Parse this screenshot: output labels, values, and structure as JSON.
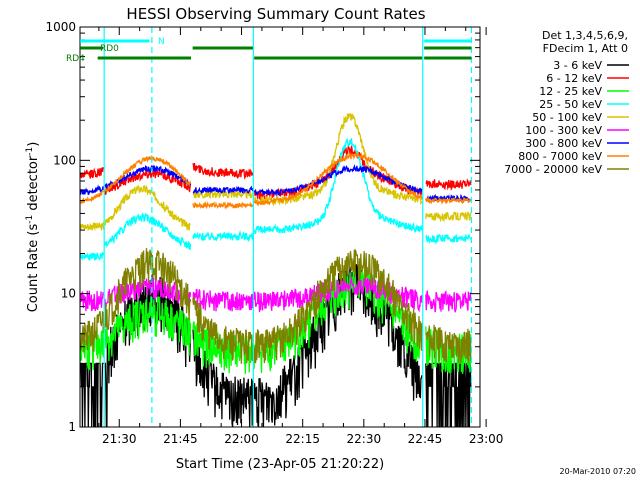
{
  "chart_data": {
    "type": "line",
    "title": "HESSI Observing Summary Count Rates",
    "xlabel": "Start Time (23-Apr-05 21:20:22)",
    "ylabel_main": "Count Rate (s",
    "ylabel_sup1": "-1",
    "ylabel_mid": " detector",
    "ylabel_sup2": "-1",
    "ylabel_end": ")",
    "yscale": "log",
    "ylim": [
      1,
      1000
    ],
    "xlim_min": [
      20.37,
      118.5
    ],
    "x_ticks": [
      {
        "label": "21:30",
        "min": 30
      },
      {
        "label": "21:45",
        "min": 45
      },
      {
        "label": "22:00",
        "min": 60
      },
      {
        "label": "22:15",
        "min": 75
      },
      {
        "label": "22:30",
        "min": 90
      },
      {
        "label": "22:45",
        "min": 105
      },
      {
        "label": "23:00",
        "min": 120
      }
    ],
    "y_ticks": [
      {
        "label": "1",
        "value": 1
      },
      {
        "label": "10",
        "value": 10
      },
      {
        "label": "100",
        "value": 100
      },
      {
        "label": "1000",
        "value": 1000
      }
    ],
    "legend_header": [
      "Det 1,3,4,5,6,9,",
      "FDecim 1, Att 0"
    ],
    "series": [
      {
        "name": "3 - 6 keV",
        "color": "#000000"
      },
      {
        "name": "6 - 12 keV",
        "color": "#ff0000"
      },
      {
        "name": "12 - 25 keV",
        "color": "#00ff00"
      },
      {
        "name": "25 - 50 keV",
        "color": "#00ffff"
      },
      {
        "name": "50 - 100 keV",
        "color": "#d8c400"
      },
      {
        "name": "100 - 300 keV",
        "color": "#ff00ff"
      },
      {
        "name": "300 - 800 keV",
        "color": "#0000ff"
      },
      {
        "name": "800 - 7000 keV",
        "color": "#ff8000"
      },
      {
        "name": "7000 - 20000 keV",
        "color": "#808000"
      }
    ],
    "flags": [
      {
        "label": "N",
        "color": "#00ffff"
      },
      {
        "label": "RD0",
        "color": "#008000"
      },
      {
        "label": "RD4",
        "color": "#008000"
      }
    ]
  },
  "footer_timestamp": "20-Mar-2010 07:20"
}
